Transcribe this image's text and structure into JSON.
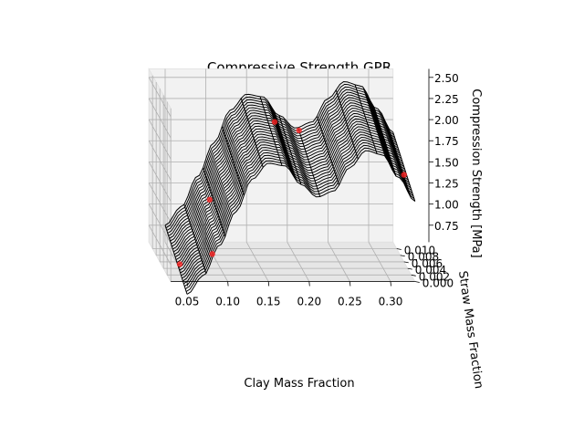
{
  "chart_data": {
    "type": "surface3d",
    "title": "Compressive Strength GPR",
    "xlabel": "Clay Mass Fraction",
    "ylabel": "Straw Mass Fraction",
    "zlabel": "Compression Strength [MPa]",
    "x_ticks": [
      "0.05",
      "0.10",
      "0.15",
      "0.20",
      "0.25",
      "0.30"
    ],
    "y_ticks": [
      "0.000",
      "0.002",
      "0.004",
      "0.006",
      "0.008",
      "0.010"
    ],
    "z_ticks": [
      "0.75",
      "1.00",
      "1.25",
      "1.50",
      "1.75",
      "2.00",
      "2.25",
      "2.50"
    ],
    "xlim": [
      0.03,
      0.33
    ],
    "ylim": [
      0.0,
      0.012
    ],
    "zlim": [
      0.55,
      2.6
    ],
    "surface_colors": {
      "line": "#000000",
      "points": "#ff2222"
    },
    "surface_profile": {
      "x": [
        0.05,
        0.07,
        0.09,
        0.11,
        0.13,
        0.15,
        0.17,
        0.19,
        0.21,
        0.23,
        0.25,
        0.27,
        0.29,
        0.31,
        0.33
      ],
      "z": [
        0.4,
        0.62,
        0.98,
        1.38,
        1.76,
        1.95,
        1.92,
        1.7,
        1.55,
        1.62,
        1.9,
        2.1,
        2.05,
        1.78,
        1.5
      ]
    },
    "scatter_points": [
      {
        "x": 0.05,
        "y": 0.004,
        "z": 0.6
      },
      {
        "x": 0.09,
        "y": 0.004,
        "z": 0.72
      },
      {
        "x": 0.08,
        "y": 0.001,
        "z": 1.48
      },
      {
        "x": 0.18,
        "y": 0.01,
        "z": 2.05
      },
      {
        "x": 0.21,
        "y": 0.01,
        "z": 1.95
      },
      {
        "x": 0.33,
        "y": 0.006,
        "z": 1.58
      }
    ]
  }
}
